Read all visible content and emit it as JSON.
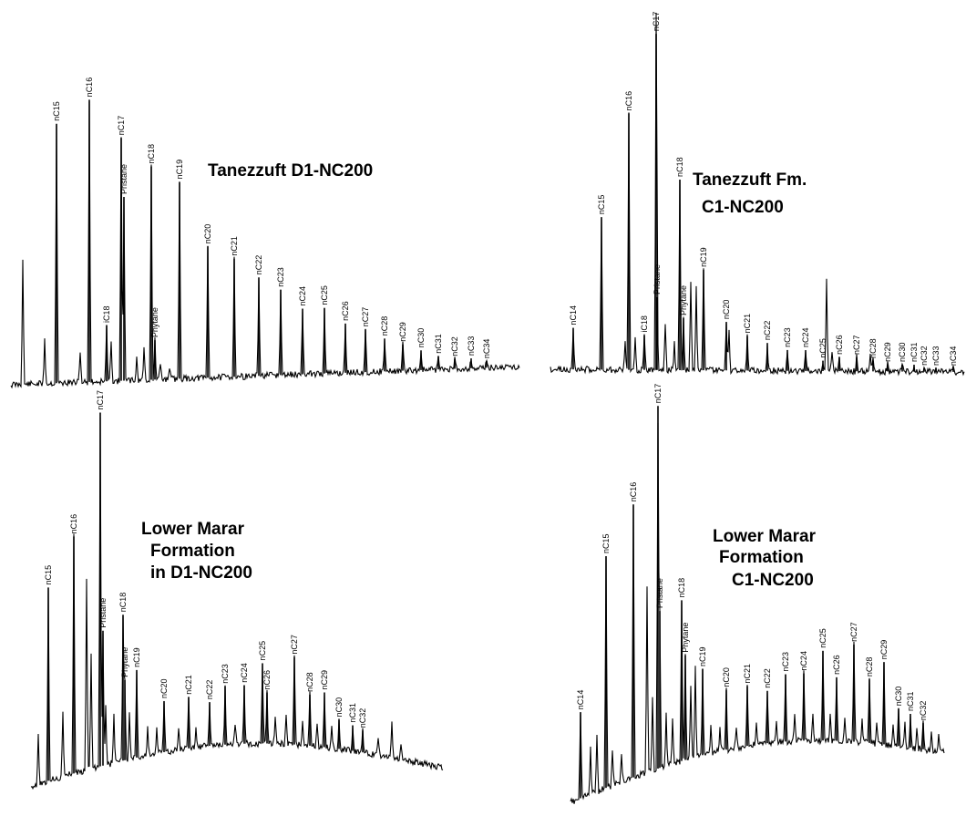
{
  "chart_data": [
    {
      "type": "line",
      "title_lines": [
        "Tanezzuft D1-NC200"
      ],
      "peaks": [
        {
          "label": "nC15",
          "height": 0.79
        },
        {
          "label": "nC16",
          "height": 0.86
        },
        {
          "label": "iC18",
          "height": 0.17
        },
        {
          "label": "nC17",
          "height": 0.74
        },
        {
          "label": "Pristane",
          "height": 0.56
        },
        {
          "label": "nC18",
          "height": 0.65
        },
        {
          "label": "Phytane",
          "height": 0.12
        },
        {
          "label": "nC19",
          "height": 0.6
        },
        {
          "label": "nC20",
          "height": 0.4
        },
        {
          "label": "nC21",
          "height": 0.36
        },
        {
          "label": "nC22",
          "height": 0.3
        },
        {
          "label": "nC23",
          "height": 0.26
        },
        {
          "label": "nC24",
          "height": 0.2
        },
        {
          "label": "nC25",
          "height": 0.2
        },
        {
          "label": "nC26",
          "height": 0.15
        },
        {
          "label": "nC27",
          "height": 0.13
        },
        {
          "label": "nC28",
          "height": 0.1
        },
        {
          "label": "nC29",
          "height": 0.08
        },
        {
          "label": "nC30",
          "height": 0.06
        },
        {
          "label": "nC31",
          "height": 0.04
        },
        {
          "label": "nC32",
          "height": 0.03
        },
        {
          "label": "nC33",
          "height": 0.03
        },
        {
          "label": "nC34",
          "height": 0.02
        }
      ]
    },
    {
      "type": "line",
      "title_lines": [
        "Tanezzuft Fm.",
        "C1-NC200"
      ],
      "peaks": [
        {
          "label": "nC14",
          "height": 0.12
        },
        {
          "label": "nC15",
          "height": 0.44
        },
        {
          "label": "nC16",
          "height": 0.74
        },
        {
          "label": "iC18",
          "height": 0.1
        },
        {
          "label": "nC17",
          "height": 0.97
        },
        {
          "label": "Pristane",
          "height": 0.21
        },
        {
          "label": "nC18",
          "height": 0.55
        },
        {
          "label": "Phytane",
          "height": 0.15
        },
        {
          "label": "nC19",
          "height": 0.29
        },
        {
          "label": "nC20",
          "height": 0.14
        },
        {
          "label": "nC21",
          "height": 0.1
        },
        {
          "label": "nC22",
          "height": 0.08
        },
        {
          "label": "nC23",
          "height": 0.06
        },
        {
          "label": "nC24",
          "height": 0.06
        },
        {
          "label": "nC25",
          "height": 0.03
        },
        {
          "label": "nC26",
          "height": 0.04
        },
        {
          "label": "nC27",
          "height": 0.04
        },
        {
          "label": "nC28",
          "height": 0.03
        },
        {
          "label": "nC29",
          "height": 0.02
        },
        {
          "label": "nC30",
          "height": 0.02
        },
        {
          "label": "nC31",
          "height": 0.02
        },
        {
          "label": "nC32",
          "height": 0.01
        },
        {
          "label": "nC33",
          "height": 0.01
        },
        {
          "label": "nC34",
          "height": 0.01
        }
      ]
    },
    {
      "type": "line",
      "title_lines": [
        "Lower Marar",
        "Formation",
        "in D1-NC200"
      ],
      "peaks": [
        {
          "label": "nC15",
          "height": 0.53
        },
        {
          "label": "nC16",
          "height": 0.65
        },
        {
          "label": "nC17",
          "height": 0.97
        },
        {
          "label": "Pristane",
          "height": 0.37
        },
        {
          "label": "nC18",
          "height": 0.4
        },
        {
          "label": "Phytane",
          "height": 0.22
        },
        {
          "label": "nC19",
          "height": 0.24
        },
        {
          "label": "nC20",
          "height": 0.14
        },
        {
          "label": "nC21",
          "height": 0.14
        },
        {
          "label": "nC22",
          "height": 0.12
        },
        {
          "label": "nC23",
          "height": 0.16
        },
        {
          "label": "nC24",
          "height": 0.16
        },
        {
          "label": "nC25",
          "height": 0.22
        },
        {
          "label": "nC26",
          "height": 0.14
        },
        {
          "label": "nC27",
          "height": 0.24
        },
        {
          "label": "nC28",
          "height": 0.14
        },
        {
          "label": "nC29",
          "height": 0.15
        },
        {
          "label": "nC30",
          "height": 0.08
        },
        {
          "label": "nC31",
          "height": 0.07
        },
        {
          "label": "nC32",
          "height": 0.06
        }
      ]
    },
    {
      "type": "line",
      "title_lines": [
        "Lower Marar",
        "Formation",
        "C1-NC200"
      ],
      "peaks": [
        {
          "label": "nC14",
          "height": 0.23
        },
        {
          "label": "nC15",
          "height": 0.62
        },
        {
          "label": "nC16",
          "height": 0.73
        },
        {
          "label": "nC17",
          "height": 0.97
        },
        {
          "label": "Pristane",
          "height": 0.42
        },
        {
          "label": "nC18",
          "height": 0.43
        },
        {
          "label": "Phytane",
          "height": 0.28
        },
        {
          "label": "nC19",
          "height": 0.23
        },
        {
          "label": "nC20",
          "height": 0.16
        },
        {
          "label": "nC21",
          "height": 0.16
        },
        {
          "label": "nC22",
          "height": 0.14
        },
        {
          "label": "nC23",
          "height": 0.18
        },
        {
          "label": "nC24",
          "height": 0.18
        },
        {
          "label": "nC25",
          "height": 0.24
        },
        {
          "label": "nC26",
          "height": 0.17
        },
        {
          "label": "nC27",
          "height": 0.26
        },
        {
          "label": "nC28",
          "height": 0.17
        },
        {
          "label": "nC29",
          "height": 0.22
        },
        {
          "label": "nC30",
          "height": 0.1
        },
        {
          "label": "nC31",
          "height": 0.09
        },
        {
          "label": "nC32",
          "height": 0.07
        }
      ]
    }
  ]
}
